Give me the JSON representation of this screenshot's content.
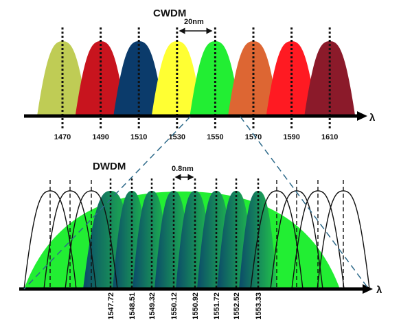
{
  "cwdm": {
    "title": "CWDM",
    "spacing_label": "20nm",
    "axis_symbol": "λ",
    "channels": [
      {
        "label": "1470",
        "color": "#bfcc55"
      },
      {
        "label": "1490",
        "color": "#c8141e"
      },
      {
        "label": "1510",
        "color": "#0b3b6b"
      },
      {
        "label": "1530",
        "color": "#ffff33"
      },
      {
        "label": "1550",
        "color": "#22ee33"
      },
      {
        "label": "1570",
        "color": "#dd6633"
      },
      {
        "label": "1590",
        "color": "#ff1a22"
      },
      {
        "label": "1610",
        "color": "#8b1a2a"
      }
    ]
  },
  "dwdm": {
    "title": "DWDM",
    "spacing_label": "0.8nm",
    "axis_symbol": "λ",
    "dome_color": "#22ee33",
    "channel_gradient": [
      "#0b4a6a",
      "#22c84a"
    ],
    "channels": [
      "1547.72",
      "1548.51",
      "1549.32",
      "1550.12",
      "1550.92",
      "1551.72",
      "1552.52",
      "1553.33"
    ]
  },
  "zoom_line_color": "#2e6a8a"
}
